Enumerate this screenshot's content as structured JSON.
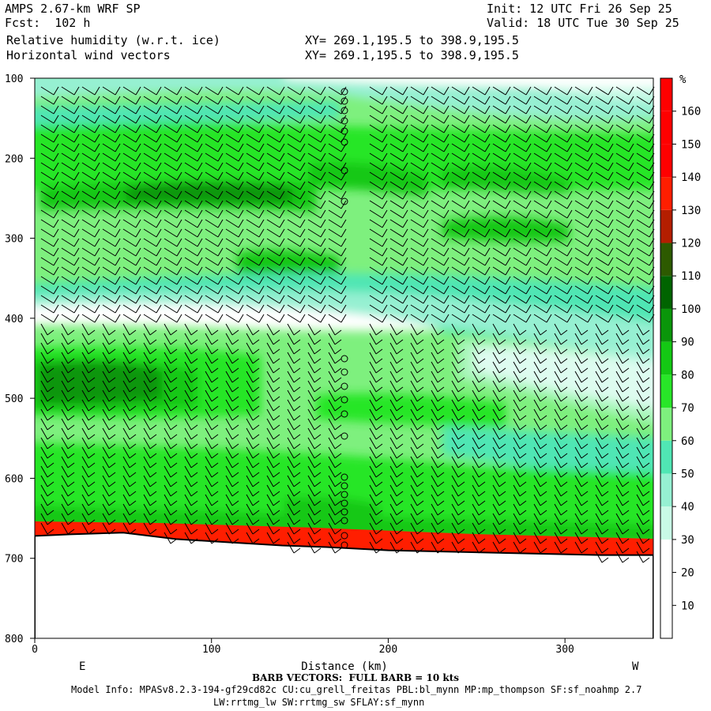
{
  "header": {
    "model": "AMPS 2.67-km WRF SP",
    "fcst": "Fcst:  102 h",
    "field1": "Relative humidity (w.r.t. ice)",
    "field2": "Horizontal wind vectors",
    "xy1": "XY= 269.1,195.5 to 398.9,195.5",
    "xy2": "XY= 269.1,195.5 to 398.9,195.5",
    "init": "Init: 12 UTC Fri 26 Sep 25",
    "valid": "Valid: 18 UTC Tue 30 Sep 25"
  },
  "footer": {
    "barb": "BARB VECTORS:  FULL BARB = 10 kts",
    "model_info": "Model Info: MPASv8.2.3-194-gf29cd82c CU:cu_grell_freitas PBL:bl_mynn MP:mp_thompson SF:sf_noahmp 2.7",
    "model_info2": "LW:rrtmg_lw SW:rrtmg_sw SFLAY:sf_mynn"
  },
  "chart_data": {
    "type": "heatmap",
    "xlabel": "Distance (km)",
    "ylabel": "",
    "xlim": [
      0,
      350
    ],
    "ylim": [
      800,
      100
    ],
    "xticks": [
      0,
      100,
      200,
      300
    ],
    "yticks": [
      100,
      200,
      300,
      400,
      500,
      600,
      700,
      800
    ],
    "x_end_labels": {
      "left": "E",
      "right": "W"
    },
    "colorbar": {
      "unit": "%",
      "levels": [
        10,
        20,
        30,
        40,
        50,
        60,
        70,
        80,
        90,
        100,
        110,
        120,
        130,
        140,
        150,
        160
      ],
      "colors": [
        "#ffffff",
        "#ffffff",
        "#ffffff",
        "#c8fae6",
        "#96f0d2",
        "#50e6b4",
        "#7ef07e",
        "#28e628",
        "#14c814",
        "#0a960a",
        "#006400",
        "#2d5a00",
        "#b41e00",
        "#ff1e00",
        "#ff0000",
        "#ff0000",
        "#ff0000"
      ]
    },
    "terrain_pressure": {
      "x": [
        0,
        20,
        50,
        80,
        110,
        140,
        165,
        200,
        240,
        280,
        320,
        350
      ],
      "p": [
        672,
        670,
        668,
        676,
        680,
        684,
        686,
        690,
        692,
        694,
        696,
        696
      ]
    },
    "humidity_bands": [
      {
        "range": "100-150 hPa",
        "value": 40
      },
      {
        "range": "150-240 hPa",
        "value": 80
      },
      {
        "range": "240-265 hPa",
        "value": 90
      },
      {
        "range": "265-360 hPa",
        "value": 70
      },
      {
        "range": "360-440 hPa",
        "value": 30
      },
      {
        "range": "440-530 hPa",
        "value": 85
      },
      {
        "range": "530-660 hPa",
        "value": 75
      },
      {
        "range": "660-690 hPa",
        "value": 160
      }
    ]
  },
  "colors": {
    "barb": "#000000",
    "frame": "#000000"
  }
}
